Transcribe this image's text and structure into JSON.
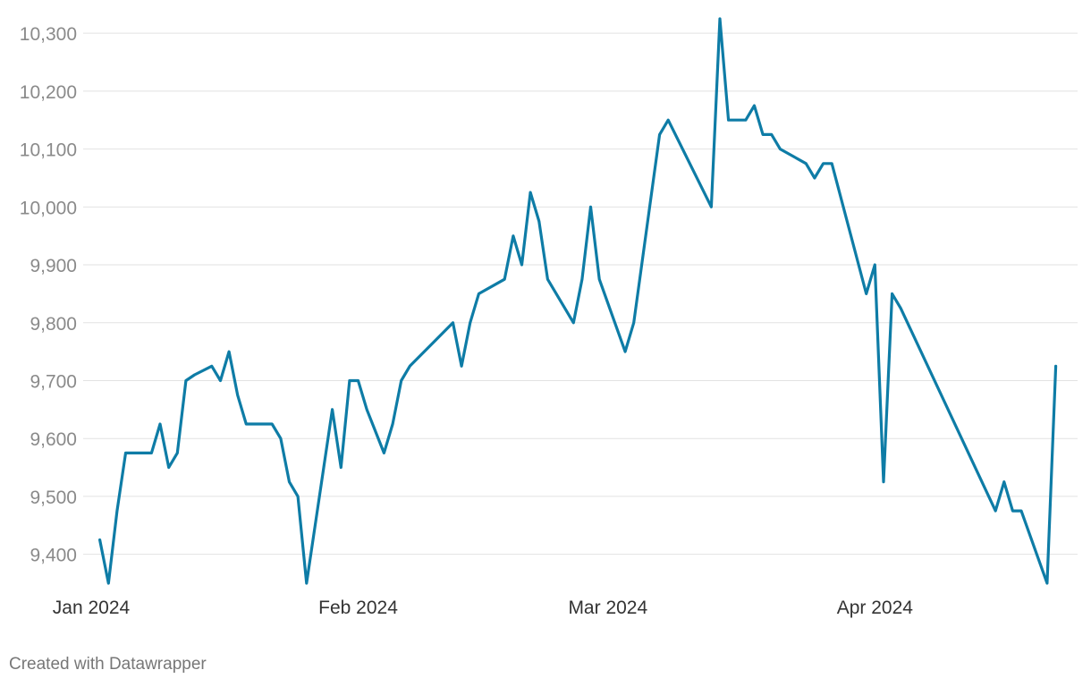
{
  "chart_data": {
    "type": "line",
    "title": "",
    "xlabel": "",
    "ylabel": "",
    "ylim": [
      9350,
      10325
    ],
    "y_ticks": [
      9400,
      9500,
      9600,
      9700,
      9800,
      9900,
      10000,
      10100,
      10200,
      10300
    ],
    "y_tick_labels": [
      "9,400",
      "9,500",
      "9,600",
      "9,700",
      "9,800",
      "9,900",
      "10,000",
      "10,100",
      "10,200",
      "10,300"
    ],
    "x_ticks": [
      "2024-01-01",
      "2024-02-01",
      "2024-03-01",
      "2024-04-01"
    ],
    "x_tick_labels": [
      "Jan 2024",
      "Feb 2024",
      "Mar 2024",
      "Apr 2024"
    ],
    "grid": true,
    "line_color": "#0e7ca6",
    "series": [
      {
        "x": [
          "2024-01-02",
          "2024-01-03",
          "2024-01-04",
          "2024-01-05",
          "2024-01-07",
          "2024-01-08",
          "2024-01-09",
          "2024-01-10",
          "2024-01-11",
          "2024-01-12",
          "2024-01-13",
          "2024-01-15",
          "2024-01-16",
          "2024-01-17",
          "2024-01-18",
          "2024-01-19",
          "2024-01-20",
          "2024-01-21",
          "2024-01-22",
          "2024-01-23",
          "2024-01-24",
          "2024-01-25",
          "2024-01-26",
          "2024-01-27",
          "2024-01-28",
          "2024-01-29",
          "2024-01-30",
          "2024-01-31",
          "2024-02-01",
          "2024-02-02",
          "2024-02-04",
          "2024-02-05",
          "2024-02-06",
          "2024-02-07",
          "2024-02-12",
          "2024-02-13",
          "2024-02-14",
          "2024-02-15",
          "2024-02-18",
          "2024-02-19",
          "2024-02-20",
          "2024-02-21",
          "2024-02-22",
          "2024-02-23",
          "2024-02-26",
          "2024-02-27",
          "2024-02-28",
          "2024-02-29",
          "2024-03-03",
          "2024-03-04",
          "2024-03-07",
          "2024-03-08",
          "2024-03-13",
          "2024-03-14",
          "2024-03-15",
          "2024-03-17",
          "2024-03-18",
          "2024-03-19",
          "2024-03-20",
          "2024-03-21",
          "2024-03-24",
          "2024-03-25",
          "2024-03-26",
          "2024-03-27",
          "2024-03-31",
          "2024-04-01",
          "2024-04-02",
          "2024-04-03",
          "2024-04-04",
          "2024-04-15",
          "2024-04-16",
          "2024-04-17",
          "2024-04-18",
          "2024-04-21",
          "2024-04-22"
        ],
        "values": [
          9425,
          9350,
          9475,
          9575,
          9575,
          9575,
          9625,
          9550,
          9575,
          9700,
          9710,
          9725,
          9700,
          9750,
          9675,
          9625,
          9625,
          9625,
          9625,
          9600,
          9525,
          9500,
          9350,
          9450,
          9550,
          9650,
          9550,
          9700,
          9700,
          9650,
          9575,
          9625,
          9700,
          9725,
          9800,
          9725,
          9800,
          9850,
          9875,
          9950,
          9900,
          10025,
          9975,
          9875,
          9800,
          9875,
          10000,
          9875,
          9750,
          9800,
          10125,
          10150,
          10000,
          10325,
          10150,
          10150,
          10175,
          10125,
          10125,
          10100,
          10075,
          10050,
          10075,
          10075,
          9850,
          9900,
          9525,
          9850,
          9825,
          9475,
          9525,
          9475,
          9475,
          9350,
          9725
        ]
      }
    ]
  },
  "footer": {
    "credit": "Created with Datawrapper"
  }
}
